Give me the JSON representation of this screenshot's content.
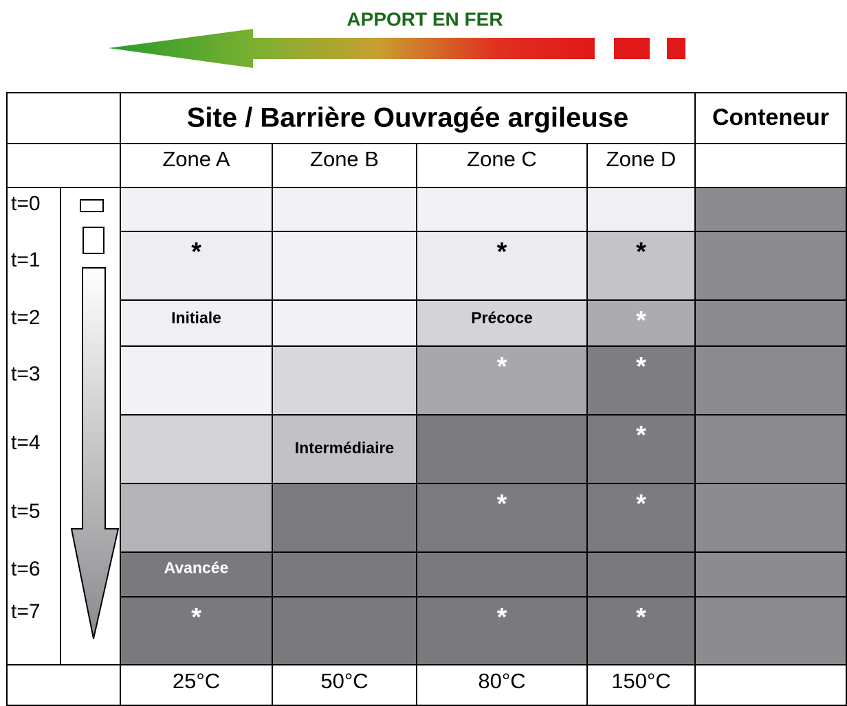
{
  "title": "APPORT EN FER",
  "header": {
    "site": "Site / Barrière Ouvragée argileuse",
    "container": "Conteneur"
  },
  "zones": [
    "Zone A",
    "Zone B",
    "Zone C",
    "Zone D"
  ],
  "rows": [
    {
      "time": "t=0",
      "cells": [
        null,
        null,
        null,
        null
      ]
    },
    {
      "time": "t=1",
      "cells": [
        "*",
        null,
        "*",
        "*"
      ]
    },
    {
      "time": "t=2",
      "cells": [
        "Initiale",
        null,
        "Précoce",
        "*"
      ]
    },
    {
      "time": "t=3",
      "cells": [
        null,
        null,
        "*",
        "*"
      ]
    },
    {
      "time": "t=4",
      "cells": [
        null,
        "Intermédiaire",
        null,
        "*"
      ]
    },
    {
      "time": "t=5",
      "cells": [
        null,
        null,
        "*",
        "*"
      ]
    },
    {
      "time": "t=6",
      "cells": [
        "Avancée",
        null,
        null,
        null
      ]
    },
    {
      "time": "t=7",
      "cells": [
        "*",
        null,
        "*",
        "*"
      ]
    }
  ],
  "temperatures": [
    "25°C",
    "50°C",
    "80°C",
    "150°C"
  ]
}
